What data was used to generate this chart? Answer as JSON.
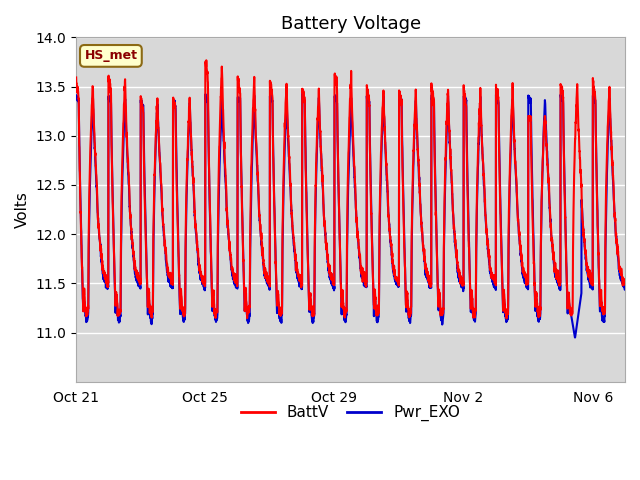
{
  "title": "Battery Voltage",
  "ylabel": "Volts",
  "ylim": [
    10.5,
    14.0
  ],
  "yticks": [
    11.0,
    11.5,
    12.0,
    12.5,
    13.0,
    13.5,
    14.0
  ],
  "xlim_start": 0,
  "xlim_end": 17,
  "xtick_positions": [
    0,
    4,
    8,
    12,
    16
  ],
  "xtick_labels": [
    "Oct 21",
    "Oct 25",
    "Oct 29",
    "Nov 2",
    "Nov 6"
  ],
  "annotation_text": "HS_met",
  "annotation_color": "#8B0000",
  "annotation_bg": "#FFFFCC",
  "annotation_border": "#8B6914",
  "background_color": "#D8D8D8",
  "outer_bg": "#FFFFFF",
  "title_fontsize": 13,
  "label_fontsize": 11,
  "tick_fontsize": 10,
  "legend_fontsize": 11,
  "batt_color": "#FF0000",
  "pwr_color": "#0000CC",
  "line_width": 1.5,
  "grid_color": "#FFFFFF",
  "grid_linewidth": 1.0,
  "batt_peaks": [
    13.55,
    13.6,
    13.4,
    13.4,
    13.75,
    13.6,
    13.55,
    13.5,
    13.65,
    13.5,
    13.45,
    13.5,
    13.45,
    13.5,
    13.3,
    13.55,
    13.55
  ],
  "pwr_peaks": [
    13.4,
    13.4,
    13.35,
    13.35,
    13.4,
    13.4,
    13.4,
    13.4,
    13.4,
    13.4,
    13.4,
    13.4,
    13.4,
    13.4,
    13.4,
    13.4,
    13.4
  ],
  "n_days": 17,
  "pts_per_day": 200
}
